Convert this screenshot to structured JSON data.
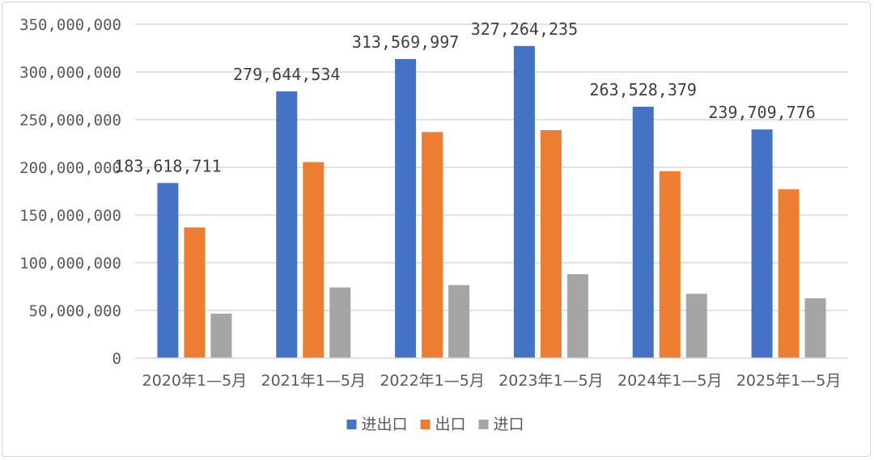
{
  "chart_data": {
    "type": "bar",
    "categories": [
      "2020年1—5月",
      "2021年1—5月",
      "2022年1—5月",
      "2023年1—5月",
      "2024年1—5月",
      "2025年1—5月"
    ],
    "series": [
      {
        "name": "进出口",
        "color": "#4472C4",
        "values": [
          183618711,
          279644534,
          313569997,
          327264235,
          263528379,
          239709776
        ]
      },
      {
        "name": "出口",
        "color": "#ED7D31",
        "values": [
          137000000,
          205500000,
          237000000,
          239000000,
          196000000,
          177000000
        ]
      },
      {
        "name": "进口",
        "color": "#A5A5A5",
        "values": [
          46600000,
          74100000,
          76600000,
          88000000,
          67500000,
          62700000
        ]
      }
    ],
    "data_labels": [
      "183,618,711",
      "279,644,534",
      "313,569,997",
      "327,264,235",
      "263,528,379",
      "239,709,776"
    ],
    "y_ticks": [
      "0",
      "50,000,000",
      "100,000,000",
      "150,000,000",
      "200,000,000",
      "250,000,000",
      "300,000,000",
      "350,000,000"
    ],
    "ylim": [
      0,
      350000000
    ],
    "grid": true,
    "legend_position": "bottom"
  }
}
